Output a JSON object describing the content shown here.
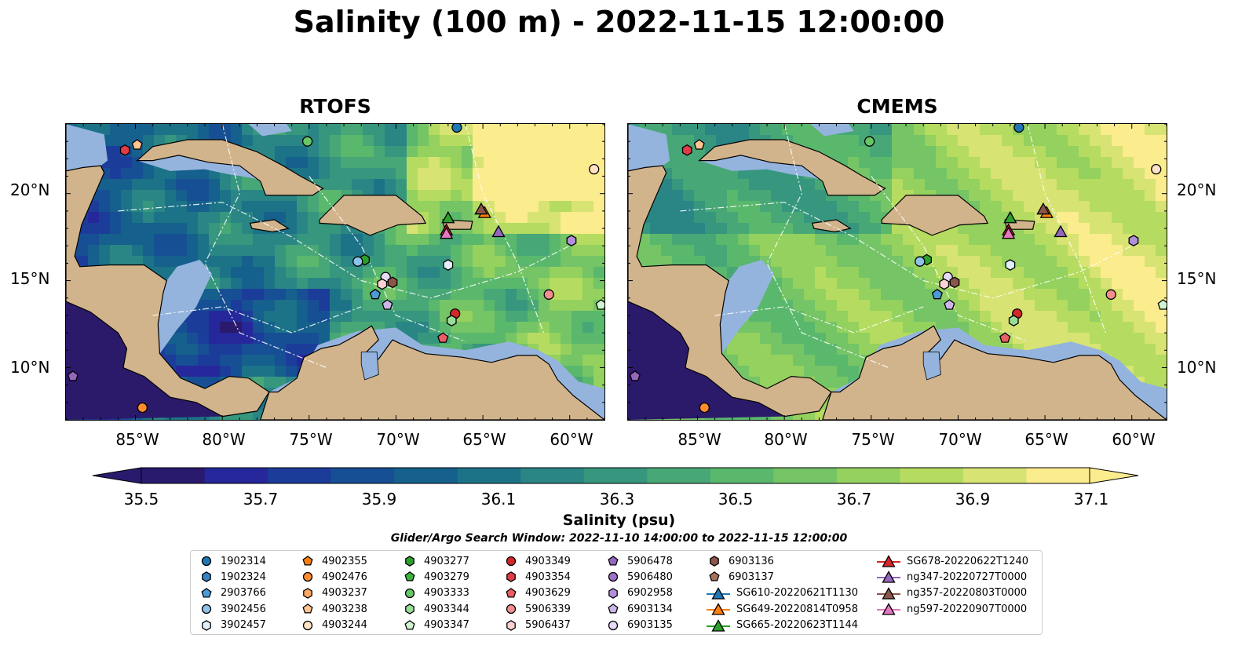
{
  "title": "Salinity (100 m) - 2022-11-15 12:00:00",
  "panels": [
    {
      "title": "RTOFS",
      "palette": "mixed"
    },
    {
      "title": "CMEMS",
      "palette": "high"
    }
  ],
  "lon_ticks": [
    "85°W",
    "80°W",
    "75°W",
    "70°W",
    "65°W",
    "60°W"
  ],
  "lat_ticks": [
    "20°N",
    "15°N",
    "10°N"
  ],
  "map_extent": {
    "lon": [
      -89,
      -58
    ],
    "lat": [
      7,
      24
    ]
  },
  "colorbar": {
    "ticks": [
      "35.5",
      "35.7",
      "35.9",
      "36.1",
      "36.3",
      "36.5",
      "36.7",
      "36.9",
      "37.1"
    ],
    "label": "Salinity (psu)",
    "range": [
      35.4,
      37.2
    ],
    "colors": [
      "#2a1a6e",
      "#25279a",
      "#1c3c9a",
      "#174f94",
      "#15608c",
      "#1c7388",
      "#2a8585",
      "#36977e",
      "#48a776",
      "#5ab86d",
      "#75c466",
      "#94d15e",
      "#b5dc60",
      "#d7e373",
      "#fbec8e"
    ]
  },
  "search_window": "Glider/Argo Search Window: 2022-11-10 14:00:00 to 2022-11-15 12:00:00",
  "map_colors": {
    "land": "#d2b48c",
    "shelf": "#94b4de",
    "deep": "#2b196a"
  },
  "legend": [
    {
      "label": "1902314",
      "marker": "circle",
      "color": "#1f77b4"
    },
    {
      "label": "1902324",
      "marker": "hexagon",
      "color": "#3583c4"
    },
    {
      "label": "2903766",
      "marker": "pentagon",
      "color": "#4c9bd8"
    },
    {
      "label": "3902456",
      "marker": "circle",
      "color": "#8fc2ea"
    },
    {
      "label": "3902457",
      "marker": "hexagon",
      "color": "#e0effa"
    },
    {
      "label": "4902355",
      "marker": "pentagon",
      "color": "#ff7f0e"
    },
    {
      "label": "4902476",
      "marker": "circle",
      "color": "#ff8c2e"
    },
    {
      "label": "4903237",
      "marker": "hexagon",
      "color": "#ffaa63"
    },
    {
      "label": "4903238",
      "marker": "pentagon",
      "color": "#ffc490"
    },
    {
      "label": "4903244",
      "marker": "circle",
      "color": "#ffe3c4"
    },
    {
      "label": "4903277",
      "marker": "hexagon",
      "color": "#2ca02c"
    },
    {
      "label": "4903279",
      "marker": "pentagon",
      "color": "#3db23d"
    },
    {
      "label": "4903333",
      "marker": "circle",
      "color": "#67c767"
    },
    {
      "label": "4903344",
      "marker": "hexagon",
      "color": "#98dc98"
    },
    {
      "label": "4903347",
      "marker": "pentagon",
      "color": "#d0f4d0"
    },
    {
      "label": "4903349",
      "marker": "circle",
      "color": "#d62728"
    },
    {
      "label": "4903354",
      "marker": "hexagon",
      "color": "#e03b47"
    },
    {
      "label": "4903629",
      "marker": "pentagon",
      "color": "#ea5f66"
    },
    {
      "label": "5906339",
      "marker": "circle",
      "color": "#f28e8e"
    },
    {
      "label": "5906437",
      "marker": "hexagon",
      "color": "#fbd1d1"
    },
    {
      "label": "5906478",
      "marker": "pentagon",
      "color": "#9467bd"
    },
    {
      "label": "5906480",
      "marker": "circle",
      "color": "#9d72c8"
    },
    {
      "label": "6902958",
      "marker": "hexagon",
      "color": "#b28fd9"
    },
    {
      "label": "6903134",
      "marker": "pentagon",
      "color": "#cdb5ea"
    },
    {
      "label": "6903135",
      "marker": "circle",
      "color": "#e8d9f8"
    },
    {
      "label": "6903136",
      "marker": "hexagon",
      "color": "#8c564b"
    },
    {
      "label": "6903137",
      "marker": "pentagon",
      "color": "#a8715f"
    },
    {
      "label": "SG610-20220621T1130",
      "marker": "triangle-line",
      "color": "#1f77b4"
    },
    {
      "label": "SG649-20220814T0958",
      "marker": "triangle-line",
      "color": "#ff7f0e"
    },
    {
      "label": "SG665-20220623T1144",
      "marker": "triangle-line",
      "color": "#2ca02c"
    },
    {
      "label": "SG678-20220622T1240",
      "marker": "triangle-line",
      "color": "#d62728"
    },
    {
      "label": "ng347-20220727T0000",
      "marker": "triangle-line",
      "color": "#9467bd"
    },
    {
      "label": "ng357-20220803T0000",
      "marker": "triangle-line",
      "color": "#8c564b"
    },
    {
      "label": "ng597-20220907T0000",
      "marker": "triangle-line",
      "color": "#e377c2"
    }
  ],
  "floats": [
    {
      "id": "1902314",
      "lon": -66.5,
      "lat": 23.8
    },
    {
      "id": "4903333",
      "lon": -75.1,
      "lat": 23.0
    },
    {
      "id": "4903354",
      "lon": -85.6,
      "lat": 22.5
    },
    {
      "id": "4903238",
      "lon": -84.9,
      "lat": 22.8
    },
    {
      "id": "4903244",
      "lon": -58.6,
      "lat": 21.4
    },
    {
      "id": "4903277",
      "lon": -71.8,
      "lat": 16.2
    },
    {
      "id": "3902456",
      "lon": -72.2,
      "lat": 16.1
    },
    {
      "id": "3902457",
      "lon": -67.0,
      "lat": 15.9
    },
    {
      "id": "6902958",
      "lon": -59.9,
      "lat": 17.3
    },
    {
      "id": "6903135",
      "lon": -70.6,
      "lat": 15.2
    },
    {
      "id": "5906437",
      "lon": -70.8,
      "lat": 14.8
    },
    {
      "id": "6903136",
      "lon": -70.2,
      "lat": 14.9
    },
    {
      "id": "2903766",
      "lon": -71.2,
      "lat": 14.2
    },
    {
      "id": "6903134",
      "lon": -70.5,
      "lat": 13.6
    },
    {
      "id": "5906339",
      "lon": -61.2,
      "lat": 14.2
    },
    {
      "id": "4903347",
      "lon": -58.2,
      "lat": 13.6
    },
    {
      "id": "4903349",
      "lon": -66.6,
      "lat": 13.1
    },
    {
      "id": "4903344",
      "lon": -66.8,
      "lat": 12.7
    },
    {
      "id": "4903629",
      "lon": -67.3,
      "lat": 11.7
    },
    {
      "id": "5906478",
      "lon": -88.6,
      "lat": 9.5
    },
    {
      "id": "4902476",
      "lon": -84.6,
      "lat": 7.7
    }
  ],
  "gliders": [
    {
      "id": "SG665-20220623T1144",
      "lon": -67.0,
      "lat": 18.6
    },
    {
      "id": "SG649-20220814T0958",
      "lon": -64.9,
      "lat": 18.9
    },
    {
      "id": "ng357-20220803T0000",
      "lon": -65.1,
      "lat": 19.1
    },
    {
      "id": "SG678-20220622T1240",
      "lon": -67.1,
      "lat": 17.9
    },
    {
      "id": "ng597-20220907T0000",
      "lon": -67.1,
      "lat": 17.7
    },
    {
      "id": "ng347-20220727T0000",
      "lon": -64.1,
      "lat": 17.8
    }
  ]
}
